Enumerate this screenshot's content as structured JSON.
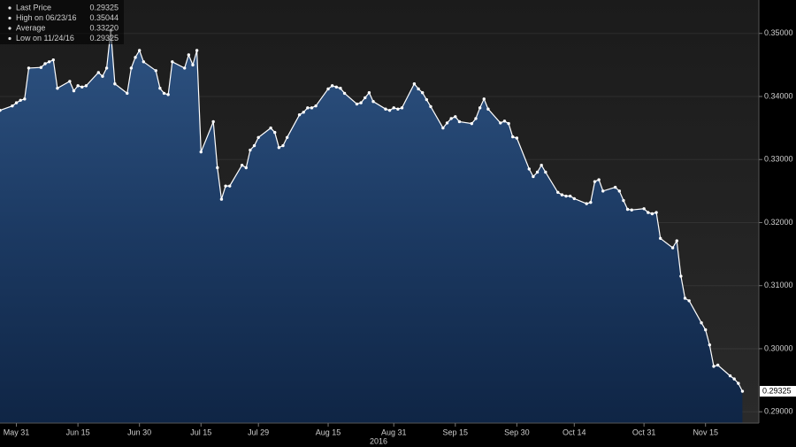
{
  "chart_data": {
    "type": "line",
    "x_label": "2016",
    "legend": [
      {
        "label": "Last Price",
        "value": 0.29325
      },
      {
        "label": "High on 06/23/16",
        "value": 0.35044
      },
      {
        "label": "Average",
        "value": {
          "value": 0.3322,
          "label": "0.33220"
        }
      },
      {
        "label": "Low on 11/24/16",
        "value": 0.29325
      }
    ],
    "series": [
      {
        "color": "#ffffff",
        "fill": "#23466f",
        "x": [
          "2016-05-27",
          "2016-05-30",
          "2016-05-31",
          "2016-06-01",
          "2016-06-02",
          "2016-06-03",
          "2016-06-06",
          "2016-06-07",
          "2016-06-08",
          "2016-06-09",
          "2016-06-10",
          "2016-06-13",
          "2016-06-14",
          "2016-06-15",
          "2016-06-16",
          "2016-06-17",
          "2016-06-20",
          "2016-06-21",
          "2016-06-22",
          "2016-06-23",
          "2016-06-24",
          "2016-06-27",
          "2016-06-28",
          "2016-06-29",
          "2016-06-30",
          "2016-07-01",
          "2016-07-04",
          "2016-07-05",
          "2016-07-06",
          "2016-07-07",
          "2016-07-08",
          "2016-07-11",
          "2016-07-12",
          "2016-07-13",
          "2016-07-14",
          "2016-07-15",
          "2016-07-18",
          "2016-07-19",
          "2016-07-20",
          "2016-07-21",
          "2016-07-22",
          "2016-07-25",
          "2016-07-26",
          "2016-07-27",
          "2016-07-28",
          "2016-07-29",
          "2016-08-01",
          "2016-08-02",
          "2016-08-03",
          "2016-08-04",
          "2016-08-05",
          "2016-08-08",
          "2016-08-09",
          "2016-08-10",
          "2016-08-11",
          "2016-08-12",
          "2016-08-15",
          "2016-08-16",
          "2016-08-17",
          "2016-08-18",
          "2016-08-19",
          "2016-08-22",
          "2016-08-23",
          "2016-08-24",
          "2016-08-25",
          "2016-08-26",
          "2016-08-29",
          "2016-08-30",
          "2016-08-31",
          "2016-09-01",
          "2016-09-02",
          "2016-09-05",
          "2016-09-06",
          "2016-09-07",
          "2016-09-08",
          "2016-09-09",
          "2016-09-12",
          "2016-09-13",
          "2016-09-14",
          "2016-09-15",
          "2016-09-16",
          "2016-09-19",
          "2016-09-20",
          "2016-09-21",
          "2016-09-22",
          "2016-09-23",
          "2016-09-26",
          "2016-09-27",
          "2016-09-28",
          "2016-09-29",
          "2016-09-30",
          "2016-10-03",
          "2016-10-04",
          "2016-10-05",
          "2016-10-06",
          "2016-10-07",
          "2016-10-10",
          "2016-10-11",
          "2016-10-12",
          "2016-10-13",
          "2016-10-14",
          "2016-10-17",
          "2016-10-18",
          "2016-10-19",
          "2016-10-20",
          "2016-10-21",
          "2016-10-24",
          "2016-10-25",
          "2016-10-26",
          "2016-10-27",
          "2016-10-28",
          "2016-10-31",
          "2016-11-01",
          "2016-11-02",
          "2016-11-03",
          "2016-11-04",
          "2016-11-07",
          "2016-11-08",
          "2016-11-09",
          "2016-11-10",
          "2016-11-11",
          "2016-11-14",
          "2016-11-15",
          "2016-11-16",
          "2016-11-17",
          "2016-11-18",
          "2016-11-21",
          "2016-11-22",
          "2016-11-23",
          "2016-11-24"
        ],
        "values": [
          0.3378,
          0.3385,
          0.339,
          0.3394,
          0.3396,
          0.3445,
          0.3446,
          0.3452,
          0.3455,
          0.3458,
          0.3413,
          0.3424,
          0.3409,
          0.3417,
          0.3415,
          0.3417,
          0.3438,
          0.3432,
          0.3445,
          0.35044,
          0.342,
          0.3405,
          0.3445,
          0.3462,
          0.3473,
          0.3455,
          0.3441,
          0.3413,
          0.3405,
          0.3403,
          0.3455,
          0.3445,
          0.3466,
          0.345,
          0.3473,
          0.3312,
          0.336,
          0.3287,
          0.3237,
          0.3258,
          0.3258,
          0.3291,
          0.3287,
          0.3315,
          0.3322,
          0.3335,
          0.335,
          0.3343,
          0.3319,
          0.3322,
          0.3335,
          0.3371,
          0.3375,
          0.3382,
          0.3382,
          0.3385,
          0.3412,
          0.3417,
          0.3415,
          0.3413,
          0.3405,
          0.3388,
          0.339,
          0.3398,
          0.3406,
          0.3392,
          0.338,
          0.3378,
          0.3382,
          0.338,
          0.3382,
          0.342,
          0.3412,
          0.3406,
          0.3395,
          0.3384,
          0.335,
          0.3358,
          0.3365,
          0.3368,
          0.336,
          0.3357,
          0.3365,
          0.3382,
          0.3396,
          0.338,
          0.3358,
          0.3361,
          0.3357,
          0.3336,
          0.3334,
          0.3285,
          0.3273,
          0.328,
          0.3291,
          0.328,
          0.3248,
          0.3244,
          0.3242,
          0.3242,
          0.3238,
          0.323,
          0.3232,
          0.3265,
          0.3268,
          0.325,
          0.3256,
          0.325,
          0.3235,
          0.3221,
          0.322,
          0.3222,
          0.3216,
          0.3214,
          0.3216,
          0.3175,
          0.316,
          0.3171,
          0.3115,
          0.308,
          0.3076,
          0.3041,
          0.303,
          0.3006,
          0.2972,
          0.2974,
          0.2957,
          0.2952,
          0.2945,
          0.29325
        ]
      }
    ],
    "xlim": [
      "2016-05-27",
      "2016-11-28"
    ],
    "xticks": [
      {
        "value": "2016-05-31",
        "label": "May 31"
      },
      {
        "value": "2016-06-15",
        "label": "Jun 15"
      },
      {
        "value": "2016-06-30",
        "label": "Jun 30"
      },
      {
        "value": "2016-07-15",
        "label": "Jul 15"
      },
      {
        "value": "2016-07-29",
        "label": "Jul 29"
      },
      {
        "value": "2016-08-15",
        "label": "Aug 15"
      },
      {
        "value": "2016-08-31",
        "label": "Aug 31"
      },
      {
        "value": "2016-09-15",
        "label": "Sep 15"
      },
      {
        "value": "2016-09-30",
        "label": "Sep 30"
      },
      {
        "value": "2016-10-14",
        "label": "Oct 14"
      },
      {
        "value": "2016-10-31",
        "label": "Oct 31"
      },
      {
        "value": "2016-11-15",
        "label": "Nov 15"
      }
    ],
    "ylim": [
      0.2882,
      0.3553
    ],
    "yticks": [
      {
        "value": 0.29,
        "label": "0.29000"
      },
      {
        "value": 0.3,
        "label": "0.30000"
      },
      {
        "value": 0.31,
        "label": "0.31000"
      },
      {
        "value": 0.32,
        "label": "0.32000"
      },
      {
        "value": 0.33,
        "label": "0.33000"
      },
      {
        "value": 0.34,
        "label": "0.34000"
      },
      {
        "value": 0.35,
        "label": "0.35000"
      }
    ],
    "grid": true
  }
}
